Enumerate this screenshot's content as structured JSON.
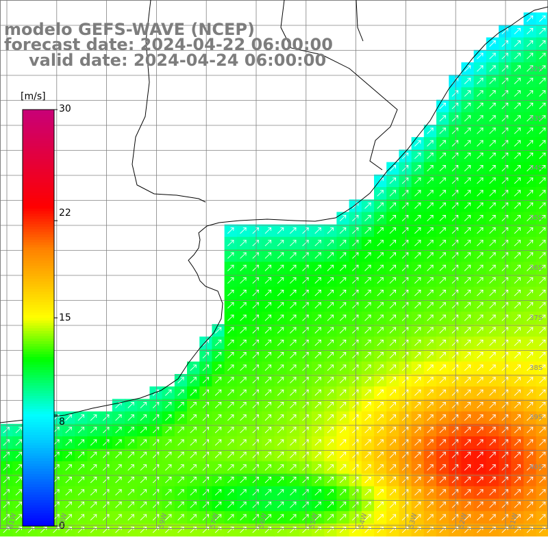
{
  "title": {
    "model": "modelo GEFS-WAVE (NCEP)",
    "forecast": "forecast date: 2024-04-22 06:00:00",
    "valid": "valid date: 2024-04-24 06:00:00"
  },
  "colorbar": {
    "unit": "[m/s]",
    "ticks": [
      {
        "label": "30",
        "value": 30
      },
      {
        "label": "22",
        "value": 22
      },
      {
        "label": "15",
        "value": 15
      },
      {
        "label": "8",
        "value": 8
      },
      {
        "label": "0",
        "value": 0
      }
    ],
    "min": 0,
    "max": 30,
    "colors": [
      "#0000ff",
      "#00c8ff",
      "#00ffff",
      "#00ff00",
      "#ffff00",
      "#ff8000",
      "#ff0000",
      "#c80078"
    ]
  },
  "chart_data": {
    "type": "heatmap",
    "variable": "wind speed",
    "unit": "m/s",
    "latitude_labels": [
      "32S",
      "33S",
      "34S",
      "35S",
      "36S",
      "37S",
      "38S",
      "39S",
      "40S"
    ],
    "longitude_labels": [
      "61W",
      "60W",
      "59W",
      "57W",
      "56W",
      "55W",
      "54W",
      "53W",
      "52W",
      "51W"
    ],
    "lat_range": [
      -41,
      -31.5
    ],
    "lon_range": [
      -62,
      -50.8
    ],
    "speed_zones": [
      {
        "region": "coastal shelf",
        "speed": 8
      },
      {
        "region": "central offshore",
        "speed": 12
      },
      {
        "region": "southeast offshore",
        "speed": 16
      },
      {
        "region": "southeast core",
        "speed": 19
      },
      {
        "region": "south near 40S",
        "speed": 9
      }
    ],
    "wind_direction": "northeast",
    "grid": true
  }
}
